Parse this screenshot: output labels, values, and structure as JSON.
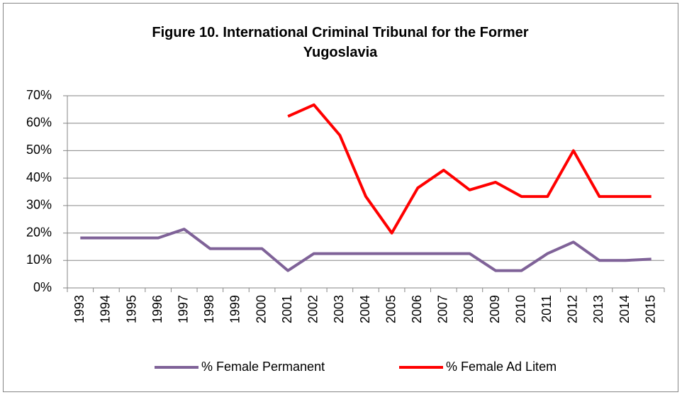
{
  "chart_data": {
    "type": "line",
    "title": "Figure 10. International Criminal Tribunal for the Former Yugoslavia",
    "categories": [
      "1993",
      "1994",
      "1995",
      "1996",
      "1997",
      "1998",
      "1999",
      "2000",
      "2001",
      "2002",
      "2003",
      "2004",
      "2005",
      "2006",
      "2007",
      "2008",
      "2009",
      "2010",
      "2011",
      "2012",
      "2013",
      "2014",
      "2015"
    ],
    "series": [
      {
        "name": "% Female Permanent",
        "color": "#7f6298",
        "values": [
          18.2,
          18.2,
          18.2,
          18.2,
          21.4,
          14.3,
          14.3,
          14.3,
          6.3,
          12.5,
          12.5,
          12.5,
          12.5,
          12.5,
          12.5,
          12.5,
          6.3,
          6.3,
          12.5,
          16.7,
          10,
          10,
          10.5
        ]
      },
      {
        "name": "% Female Ad Litem",
        "color": "#ff0000",
        "values": [
          null,
          null,
          null,
          null,
          null,
          null,
          null,
          null,
          62.5,
          66.7,
          55.6,
          33.3,
          20,
          36.4,
          42.9,
          35.7,
          38.5,
          33.3,
          33.3,
          50,
          33.3,
          33.3,
          33.3
        ]
      }
    ],
    "ylim": [
      0,
      70
    ],
    "yticks": [
      {
        "value": 0,
        "label": "0%"
      },
      {
        "value": 10,
        "label": "10%"
      },
      {
        "value": 20,
        "label": "20%"
      },
      {
        "value": 30,
        "label": "30%"
      },
      {
        "value": 40,
        "label": "40%"
      },
      {
        "value": 50,
        "label": "50%"
      },
      {
        "value": 60,
        "label": "60%"
      },
      {
        "value": 70,
        "label": "70%"
      }
    ],
    "grid": true,
    "legend": "bottom"
  }
}
